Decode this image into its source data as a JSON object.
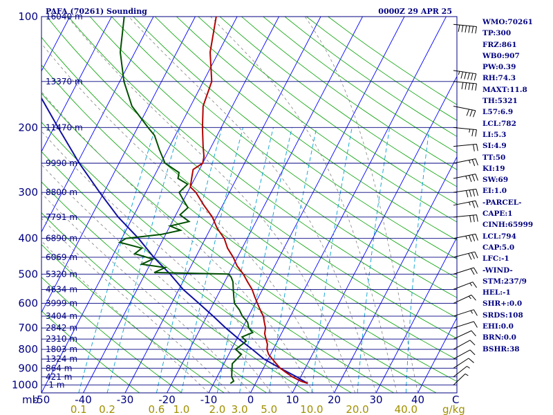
{
  "header": {
    "title": "PAFA (70261) Sounding",
    "time": "0000Z 29 APR 25"
  },
  "chart_data": {
    "type": "skew-t",
    "pressure_ticks": [
      100,
      200,
      300,
      400,
      500,
      600,
      700,
      800,
      900,
      1000
    ],
    "temperature_ticks": [
      -50,
      -40,
      -30,
      -20,
      -10,
      0,
      10,
      20,
      30,
      40
    ],
    "temperature_tick_labels": [
      "-50",
      "-40",
      "-30",
      "-20",
      "-10",
      "0",
      "10",
      "20",
      "30",
      "40"
    ],
    "corner_labels": {
      "bottom_left": "mb",
      "bottom_right": "C"
    },
    "mixing_ratio_unit": "g/kg",
    "mixing_ratio_labels": [
      "0.1",
      "0.2",
      "0.6",
      "1.0",
      "2.0",
      "3.0",
      "5.0",
      "10.0",
      "20.0",
      "40.0"
    ],
    "mixing_ratio_values": [
      0.1,
      0.2,
      0.6,
      1.0,
      2.0,
      3.0,
      5.0,
      10.0,
      20.0,
      40.0
    ],
    "heights": [
      {
        "p": 100,
        "label": "16040 m"
      },
      {
        "p": 150,
        "label": "13370 m"
      },
      {
        "p": 200,
        "label": "11470 m"
      },
      {
        "p": 250,
        "label": "9990 m"
      },
      {
        "p": 300,
        "label": "8800 m"
      },
      {
        "p": 350,
        "label": "7791 m"
      },
      {
        "p": 400,
        "label": "6890 m"
      },
      {
        "p": 450,
        "label": "6069 m"
      },
      {
        "p": 500,
        "label": "5320 m"
      },
      {
        "p": 550,
        "label": "4634 m"
      },
      {
        "p": 600,
        "label": "3999 m"
      },
      {
        "p": 650,
        "label": "3404 m"
      },
      {
        "p": 700,
        "label": "2842 m"
      },
      {
        "p": 750,
        "label": "2310 m"
      },
      {
        "p": 800,
        "label": "1803 m"
      },
      {
        "p": 850,
        "label": "1324 m"
      },
      {
        "p": 900,
        "label": "864 m"
      },
      {
        "p": 950,
        "label": "421 m"
      },
      {
        "p": 1000,
        "label": "-1 m"
      }
    ],
    "temperature_profile": [
      [
        990,
        12.5
      ],
      [
        975,
        10.5
      ],
      [
        950,
        8.0
      ],
      [
        925,
        6.0
      ],
      [
        900,
        4.0
      ],
      [
        875,
        2.5
      ],
      [
        850,
        1.0
      ],
      [
        825,
        -0.5
      ],
      [
        800,
        -1.5
      ],
      [
        775,
        -2.0
      ],
      [
        750,
        -3.0
      ],
      [
        725,
        -4.0
      ],
      [
        700,
        -4.5
      ],
      [
        675,
        -5.5
      ],
      [
        650,
        -6.5
      ],
      [
        625,
        -8.0
      ],
      [
        600,
        -9.5
      ],
      [
        575,
        -11.0
      ],
      [
        550,
        -12.5
      ],
      [
        525,
        -14.5
      ],
      [
        500,
        -16.5
      ],
      [
        475,
        -19.0
      ],
      [
        450,
        -21.0
      ],
      [
        425,
        -23.5
      ],
      [
        400,
        -25.5
      ],
      [
        375,
        -28.5
      ],
      [
        350,
        -31.0
      ],
      [
        325,
        -34.5
      ],
      [
        300,
        -38.0
      ],
      [
        290,
        -40.0
      ],
      [
        280,
        -40.5
      ],
      [
        270,
        -41.0
      ],
      [
        260,
        -41.5
      ],
      [
        250,
        -40.0
      ],
      [
        240,
        -40.5
      ],
      [
        225,
        -42.0
      ],
      [
        200,
        -44.5
      ],
      [
        175,
        -47.0
      ],
      [
        150,
        -48.0
      ],
      [
        125,
        -52.0
      ],
      [
        100,
        -55.0
      ]
    ],
    "dewpoint_profile": [
      [
        990,
        -6.0
      ],
      [
        975,
        -5.5
      ],
      [
        950,
        -6.5
      ],
      [
        925,
        -7.0
      ],
      [
        900,
        -7.5
      ],
      [
        875,
        -8.0
      ],
      [
        850,
        -7.5
      ],
      [
        825,
        -7.0
      ],
      [
        800,
        -9.0
      ],
      [
        775,
        -8.0
      ],
      [
        760,
        -7.5
      ],
      [
        740,
        -9.0
      ],
      [
        720,
        -7.0
      ],
      [
        700,
        -8.5
      ],
      [
        675,
        -9.5
      ],
      [
        650,
        -11.5
      ],
      [
        625,
        -13.0
      ],
      [
        600,
        -15.0
      ],
      [
        575,
        -16.0
      ],
      [
        550,
        -17.0
      ],
      [
        525,
        -18.0
      ],
      [
        510,
        -19.0
      ],
      [
        500,
        -20.0
      ],
      [
        495,
        -38.0
      ],
      [
        480,
        -36.0
      ],
      [
        470,
        -42.0
      ],
      [
        455,
        -40.0
      ],
      [
        440,
        -45.0
      ],
      [
        425,
        -44.0
      ],
      [
        410,
        -50.0
      ],
      [
        400,
        -49.0
      ],
      [
        390,
        -41.0
      ],
      [
        380,
        -37.0
      ],
      [
        370,
        -40.0
      ],
      [
        360,
        -36.0
      ],
      [
        345,
        -39.0
      ],
      [
        330,
        -38.0
      ],
      [
        315,
        -40.0
      ],
      [
        300,
        -42.0
      ],
      [
        285,
        -41.0
      ],
      [
        275,
        -44.0
      ],
      [
        265,
        -44.5
      ],
      [
        250,
        -49.0
      ],
      [
        230,
        -52.0
      ],
      [
        210,
        -55.0
      ],
      [
        200,
        -57.5
      ],
      [
        175,
        -64.0
      ],
      [
        150,
        -69.0
      ],
      [
        125,
        -73.5
      ],
      [
        100,
        -77.0
      ]
    ],
    "parcel_profile": [
      [
        990,
        12.5
      ],
      [
        950,
        9.0
      ],
      [
        900,
        4.0
      ],
      [
        850,
        -1.0
      ],
      [
        800,
        -5.0
      ],
      [
        750,
        -9.5
      ],
      [
        700,
        -14.0
      ],
      [
        650,
        -18.5
      ],
      [
        600,
        -23.5
      ],
      [
        550,
        -29.0
      ],
      [
        500,
        -34.0
      ],
      [
        450,
        -40.0
      ],
      [
        400,
        -46.0
      ],
      [
        350,
        -53.5
      ],
      [
        300,
        -61.0
      ],
      [
        250,
        -69.5
      ],
      [
        200,
        -79.0
      ],
      [
        150,
        -91.0
      ],
      [
        120,
        -99.0
      ],
      [
        100,
        -106.0
      ]
    ],
    "wind_levels": [
      {
        "p": 105,
        "dir": 280,
        "spd": 60
      },
      {
        "p": 140,
        "dir": 285,
        "spd": 55
      },
      {
        "p": 150,
        "dir": 280,
        "spd": 50
      },
      {
        "p": 175,
        "dir": 290,
        "spd": 30
      },
      {
        "p": 200,
        "dir": 280,
        "spd": 25
      },
      {
        "p": 225,
        "dir": 260,
        "spd": 20
      },
      {
        "p": 250,
        "dir": 250,
        "spd": 25
      },
      {
        "p": 275,
        "dir": 250,
        "spd": 35
      },
      {
        "p": 300,
        "dir": 255,
        "spd": 40
      },
      {
        "p": 325,
        "dir": 250,
        "spd": 25
      },
      {
        "p": 350,
        "dir": 260,
        "spd": 30
      },
      {
        "p": 400,
        "dir": 250,
        "spd": 35
      },
      {
        "p": 450,
        "dir": 245,
        "spd": 30
      },
      {
        "p": 500,
        "dir": 240,
        "spd": 20
      },
      {
        "p": 550,
        "dir": 235,
        "spd": 15
      },
      {
        "p": 600,
        "dir": 230,
        "spd": 15
      },
      {
        "p": 650,
        "dir": 240,
        "spd": 15
      },
      {
        "p": 700,
        "dir": 240,
        "spd": 10
      },
      {
        "p": 750,
        "dir": 230,
        "spd": 10
      },
      {
        "p": 800,
        "dir": 225,
        "spd": 10
      },
      {
        "p": 850,
        "dir": 225,
        "spd": 10
      },
      {
        "p": 900,
        "dir": 220,
        "spd": 10
      },
      {
        "p": 950,
        "dir": 215,
        "spd": 5
      },
      {
        "p": 1000,
        "dir": 210,
        "spd": 5
      }
    ]
  },
  "indices": [
    "WMO:70261",
    "TP:300",
    "FRZ:861",
    "WB0:907",
    "PW:0.39",
    "RH:74.3",
    "MAXT:11.8",
    "TH:5321",
    "L57:6.9",
    "LCL:782",
    "LI:5.3",
    "SI:4.9",
    "TT:50",
    "KI:19",
    "SW:69",
    "EI:1.0",
    "-PARCEL-",
    "CAPE:1",
    "CINH:65999",
    "LCL:794",
    "CAP:5.0",
    "LFC:-1",
    "-WIND-",
    "STM:237/9",
    "HEL:-1",
    "SHR+:0.0",
    "SRDS:108",
    "EHI:0.0",
    "BRN:0.0",
    "BSHR:38"
  ],
  "colors": {
    "isobar": "#000080",
    "isotherm": "#0000ff",
    "dry_adiabat": "#00a000",
    "moist_adiabat": "#000000",
    "mixing_ratio": "#00a0d0",
    "temperature": "#b00000",
    "dewpoint": "#005000",
    "parcel": "#1010a0"
  }
}
